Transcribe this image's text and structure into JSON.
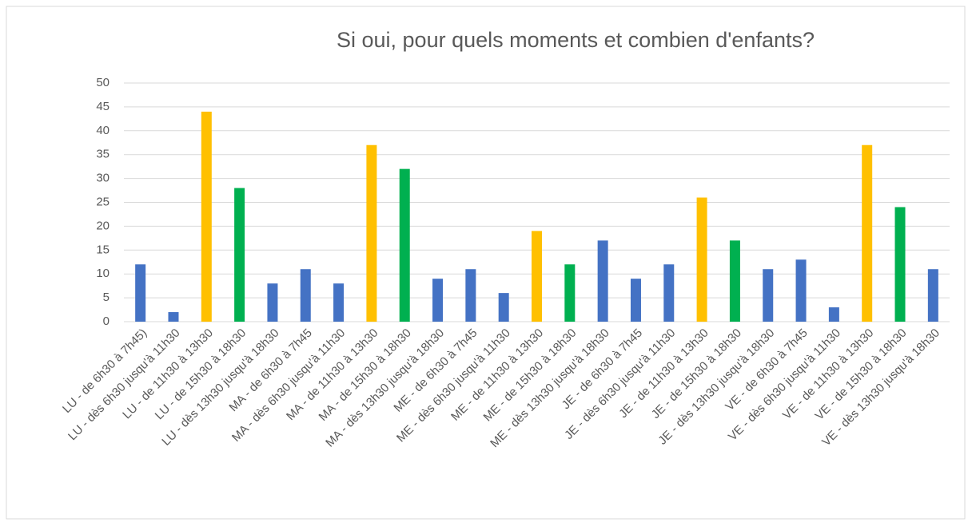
{
  "chart_data": {
    "type": "bar",
    "title": "Si oui, pour quels moments et combien d'enfants?",
    "categories": [
      "LU - de 6h30 à 7h45)",
      "LU - dès 6h30 jusqu'à 11h30",
      "LU - de 11h30 à 13h30",
      "LU - de 15h30 à 18h30",
      "LU - dès 13h30 jusqu'à 18h30",
      "MA - de 6h30 à 7h45",
      "MA - dès 6h30 jusqu'à 11h30",
      "MA - de 11h30 à 13h30",
      "MA - de 15h30 à 18h30",
      "MA - dès 13h30 jusqu'à 18h30",
      "ME - de 6h30 à 7h45",
      "ME - dès 6h30 jusqu'à 11h30",
      "ME - de 11h30 à 13h30",
      "ME - de 15h30 à 18h30",
      "ME - dès 13h30 jusqu'à 18h30",
      "JE - de 6h30 à 7h45",
      "JE - dès 6h30 jusqu'à 11h30",
      "JE - de 11h30 à 13h30",
      "JE - de 15h30 à 18h30",
      "JE - dès 13h30 jusqu'à 18h30",
      "VE - de 6h30 à 7h45",
      "VE - dès 6h30 jusqu'à 11h30",
      "VE - de 11h30 à 13h30",
      "VE - de 15h30 à 18h30",
      "VE - dès 13h30 jusqu'à 18h30"
    ],
    "values": [
      12,
      2,
      44,
      28,
      8,
      11,
      8,
      37,
      32,
      9,
      11,
      6,
      19,
      12,
      17,
      9,
      12,
      26,
      17,
      11,
      13,
      3,
      37,
      24,
      11
    ],
    "colors": [
      "#4472c4",
      "#4472c4",
      "#ffc000",
      "#00b050",
      "#4472c4",
      "#4472c4",
      "#4472c4",
      "#ffc000",
      "#00b050",
      "#4472c4",
      "#4472c4",
      "#4472c4",
      "#ffc000",
      "#00b050",
      "#4472c4",
      "#4472c4",
      "#4472c4",
      "#ffc000",
      "#00b050",
      "#4472c4",
      "#4472c4",
      "#4472c4",
      "#ffc000",
      "#00b050",
      "#4472c4"
    ],
    "ylim": [
      0,
      50
    ],
    "yticks": [
      0,
      5,
      10,
      15,
      20,
      25,
      30,
      35,
      40,
      45,
      50
    ],
    "grid": true
  }
}
